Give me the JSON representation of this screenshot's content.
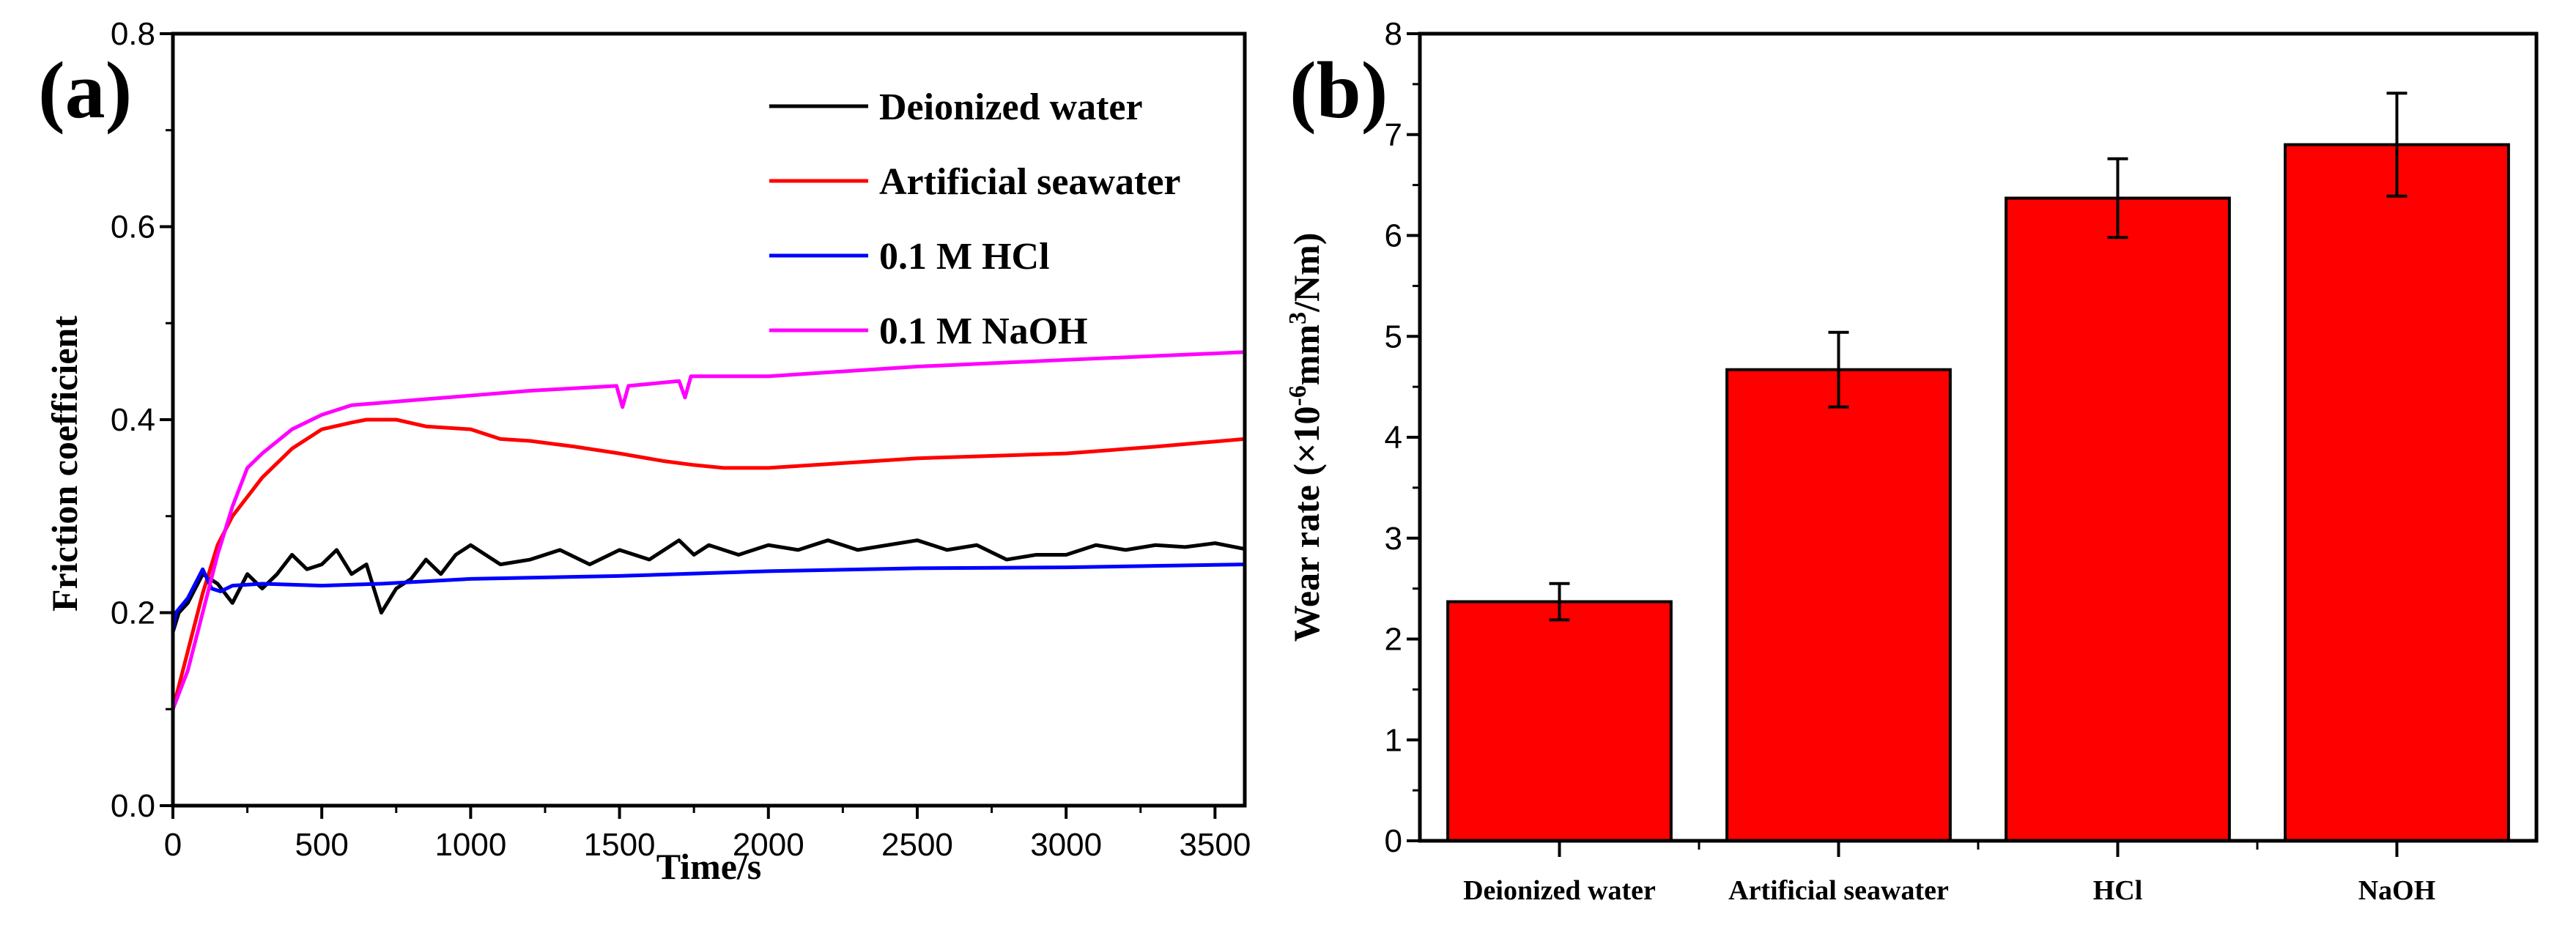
{
  "chart_data": [
    {
      "type": "line",
      "panel_label": "(a)",
      "xlabel": "Time/s",
      "ylabel": "Friction coefficient",
      "xlim": [
        0,
        3600
      ],
      "ylim": [
        0,
        0.8
      ],
      "xticks": [
        "0",
        "500",
        "1000",
        "1500",
        "2000",
        "2500",
        "3000",
        "3500"
      ],
      "xtick_values": [
        0,
        500,
        1000,
        1500,
        2000,
        2500,
        3000,
        3500
      ],
      "yticks": [
        "0.0",
        "0.2",
        "0.4",
        "0.6",
        "0.8"
      ],
      "ytick_values": [
        0,
        0.2,
        0.4,
        0.6,
        0.8
      ],
      "legend_position": "top-right",
      "grid": false,
      "series": [
        {
          "name": "Deionized water",
          "color": "#000000",
          "x": [
            0,
            20,
            50,
            100,
            150,
            200,
            250,
            300,
            350,
            400,
            450,
            500,
            550,
            600,
            650,
            700,
            750,
            800,
            850,
            900,
            950,
            1000,
            1100,
            1200,
            1300,
            1400,
            1500,
            1600,
            1700,
            1750,
            1800,
            1900,
            2000,
            2100,
            2200,
            2300,
            2400,
            2500,
            2600,
            2700,
            2800,
            2900,
            3000,
            3100,
            3200,
            3300,
            3400,
            3500,
            3600
          ],
          "y": [
            0.18,
            0.2,
            0.21,
            0.24,
            0.23,
            0.21,
            0.24,
            0.225,
            0.24,
            0.26,
            0.245,
            0.25,
            0.265,
            0.24,
            0.25,
            0.2,
            0.225,
            0.235,
            0.255,
            0.24,
            0.26,
            0.27,
            0.25,
            0.255,
            0.265,
            0.25,
            0.265,
            0.255,
            0.275,
            0.26,
            0.27,
            0.26,
            0.27,
            0.265,
            0.275,
            0.265,
            0.27,
            0.275,
            0.265,
            0.27,
            0.255,
            0.26,
            0.26,
            0.27,
            0.265,
            0.27,
            0.268,
            0.272,
            0.266
          ]
        },
        {
          "name": "Artificial seawater",
          "color": "#ff0000",
          "x": [
            0,
            50,
            100,
            150,
            200,
            300,
            400,
            500,
            600,
            650,
            750,
            850,
            1000,
            1100,
            1200,
            1350,
            1500,
            1650,
            1750,
            1850,
            1900,
            2000,
            2100,
            2300,
            2500,
            2700,
            3000,
            3300,
            3600
          ],
          "y": [
            0.1,
            0.16,
            0.22,
            0.27,
            0.3,
            0.34,
            0.37,
            0.39,
            0.397,
            0.4,
            0.4,
            0.393,
            0.39,
            0.38,
            0.378,
            0.372,
            0.365,
            0.357,
            0.353,
            0.35,
            0.35,
            0.35,
            0.352,
            0.356,
            0.36,
            0.362,
            0.365,
            0.372,
            0.38
          ]
        },
        {
          "name": "0.1 M HCl",
          "color": "#0000ff",
          "x": [
            0,
            10,
            50,
            100,
            130,
            160,
            200,
            300,
            500,
            700,
            1000,
            1500,
            2000,
            2500,
            3000,
            3600
          ],
          "y": [
            0.18,
            0.2,
            0.215,
            0.245,
            0.225,
            0.222,
            0.228,
            0.23,
            0.228,
            0.23,
            0.235,
            0.238,
            0.243,
            0.246,
            0.247,
            0.25
          ]
        },
        {
          "name": "0.1 M NaOH",
          "color": "#ff00ff",
          "x": [
            0,
            50,
            100,
            150,
            200,
            250,
            300,
            400,
            500,
            600,
            800,
            1000,
            1200,
            1490,
            1510,
            1530,
            1700,
            1720,
            1740,
            2000,
            2500,
            3000,
            3300,
            3600
          ],
          "y": [
            0.1,
            0.14,
            0.2,
            0.26,
            0.31,
            0.35,
            0.365,
            0.39,
            0.405,
            0.415,
            0.42,
            0.425,
            0.43,
            0.435,
            0.413,
            0.435,
            0.44,
            0.423,
            0.445,
            0.445,
            0.455,
            0.462,
            0.466,
            0.47
          ]
        }
      ]
    },
    {
      "type": "bar",
      "panel_label": "(b)",
      "ylabel_main": "Wear rate (×10",
      "ylabel_sup1": "-6",
      "ylabel_mid": "mm",
      "ylabel_sup2": "3",
      "ylabel_end": "/Nm)",
      "categories": [
        "Deionized water",
        "Artificial seawater",
        "HCl",
        "NaOH"
      ],
      "values": [
        2.37,
        4.67,
        6.37,
        6.9
      ],
      "errors": [
        0.18,
        0.37,
        0.39,
        0.51
      ],
      "bar_color": "#ff0000",
      "ylim": [
        0,
        8
      ],
      "yticks": [
        "0",
        "1",
        "2",
        "3",
        "4",
        "5",
        "6",
        "7",
        "8"
      ],
      "ytick_values": [
        0,
        1,
        2,
        3,
        4,
        5,
        6,
        7,
        8
      ],
      "grid": false
    }
  ]
}
